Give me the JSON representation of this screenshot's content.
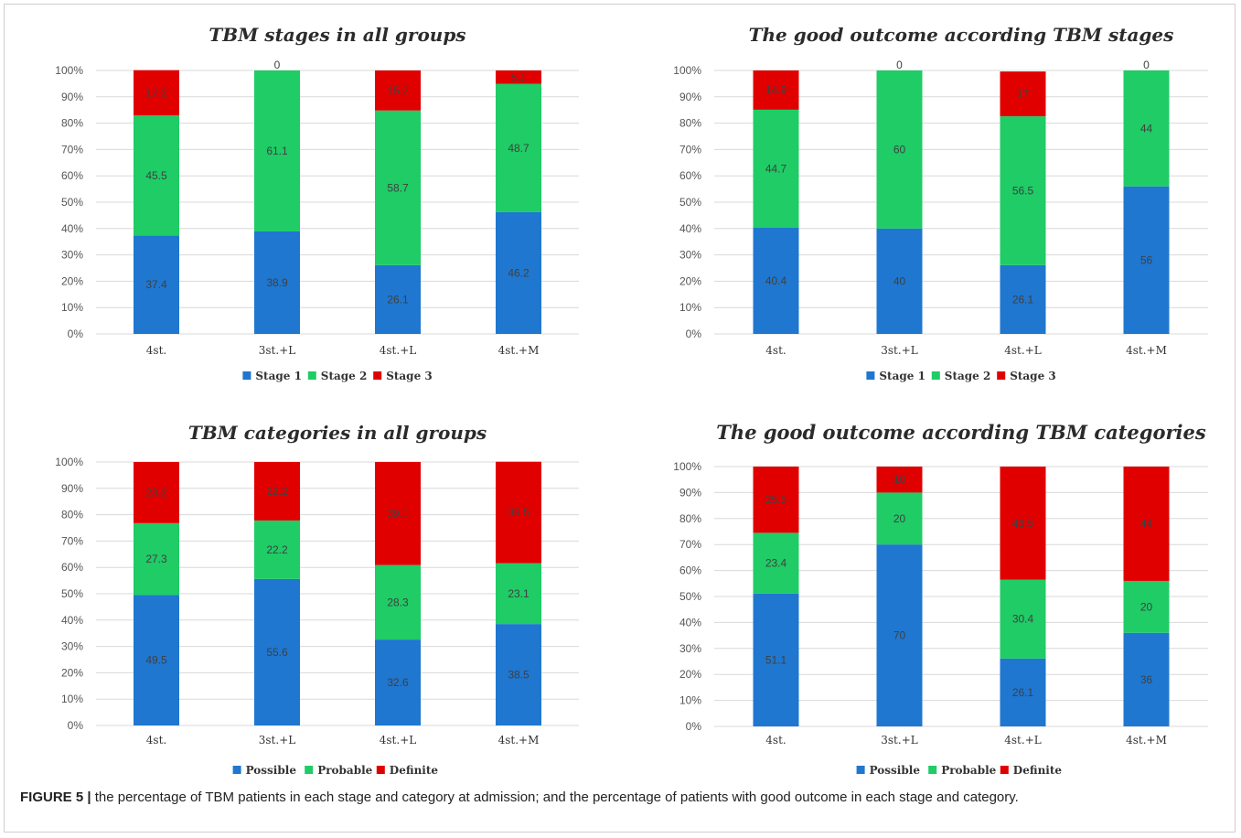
{
  "caption": {
    "label": "FIGURE 5 |",
    "text": " the percentage of TBM patients in each stage and category at admission; and the percentage of patients with good outcome in each stage and category."
  },
  "chart_data": [
    {
      "type": "bar",
      "stacked": true,
      "title": "TBM stages in all groups",
      "categories": [
        "4st.",
        "3st.+L",
        "4st.+L",
        "4st.+M"
      ],
      "yticks": [
        "0%",
        "10%",
        "20%",
        "30%",
        "40%",
        "50%",
        "60%",
        "70%",
        "80%",
        "90%",
        "100%"
      ],
      "ylim": [
        0,
        100
      ],
      "grid": true,
      "legend_position": "bottom",
      "series": [
        {
          "name": "Stage 1",
          "color": "#1f77d0",
          "values": [
            37.4,
            38.9,
            26.1,
            46.2
          ],
          "labels": [
            "37.4",
            "38.9",
            "26.1",
            "46.2"
          ]
        },
        {
          "name": "Stage 2",
          "color": "#1fcc66",
          "values": [
            45.5,
            61.1,
            58.7,
            48.7
          ],
          "labels": [
            "45.5",
            "61.1",
            "58.7",
            "48.7"
          ]
        },
        {
          "name": "Stage 3",
          "color": "#e00000",
          "values": [
            17.2,
            0,
            15.2,
            5.1
          ],
          "labels": [
            "17.2",
            "0",
            "15.2",
            "5.1"
          ]
        }
      ]
    },
    {
      "type": "bar",
      "stacked": true,
      "title": "The good outcome according TBM stages",
      "categories": [
        "4st.",
        "3st.+L",
        "4st.+L",
        "4st.+M"
      ],
      "yticks": [
        "0%",
        "10%",
        "20%",
        "30%",
        "40%",
        "50%",
        "60%",
        "70%",
        "80%",
        "90%",
        "100%"
      ],
      "ylim": [
        0,
        100
      ],
      "grid": true,
      "legend_position": "bottom",
      "series": [
        {
          "name": "Stage 1",
          "color": "#1f77d0",
          "values": [
            40.4,
            40,
            26.1,
            56
          ],
          "labels": [
            "40.4",
            "40",
            "26.1",
            "56"
          ]
        },
        {
          "name": "Stage 2",
          "color": "#1fcc66",
          "values": [
            44.7,
            60,
            56.5,
            44
          ],
          "labels": [
            "44.7",
            "60",
            "56.5",
            "44"
          ]
        },
        {
          "name": "Stage 3",
          "color": "#e00000",
          "values": [
            14.9,
            0,
            17,
            0
          ],
          "labels": [
            "14.9",
            "0",
            "17",
            "0"
          ]
        }
      ]
    },
    {
      "type": "bar",
      "stacked": true,
      "title": "TBM categories in all groups",
      "categories": [
        "4st.",
        "3st.+L",
        "4st.+L",
        "4st.+M"
      ],
      "yticks": [
        "0%",
        "10%",
        "20%",
        "30%",
        "40%",
        "50%",
        "60%",
        "70%",
        "80%",
        "90%",
        "100%"
      ],
      "ylim": [
        0,
        100
      ],
      "grid": true,
      "legend_position": "bottom",
      "series": [
        {
          "name": "Possible",
          "color": "#1f77d0",
          "values": [
            49.5,
            55.6,
            32.6,
            38.5
          ],
          "labels": [
            "49.5",
            "55.6",
            "32.6",
            "38.5"
          ]
        },
        {
          "name": "Probable",
          "color": "#1fcc66",
          "values": [
            27.3,
            22.2,
            28.3,
            23.1
          ],
          "labels": [
            "27.3",
            "22.2",
            "28.3",
            "23.1"
          ]
        },
        {
          "name": "Definite",
          "color": "#e00000",
          "values": [
            23.2,
            22.2,
            39.1,
            38.5
          ],
          "labels": [
            "23.2",
            "22.2",
            "39.1",
            "38.5"
          ]
        }
      ]
    },
    {
      "type": "bar",
      "stacked": true,
      "title": "The good outcome according TBM categories",
      "categories": [
        "4st.",
        "3st.+L",
        "4st.+L",
        "4st.+M"
      ],
      "yticks": [
        "0%",
        "10%",
        "20%",
        "30%",
        "40%",
        "50%",
        "60%",
        "70%",
        "80%",
        "90%",
        "100%"
      ],
      "ylim": [
        0,
        100
      ],
      "grid": true,
      "legend_position": "bottom",
      "series": [
        {
          "name": "Possible",
          "color": "#1f77d0",
          "values": [
            51.1,
            70,
            26.1,
            36
          ],
          "labels": [
            "51.1",
            "70",
            "26.1",
            "36"
          ]
        },
        {
          "name": "Probable",
          "color": "#1fcc66",
          "values": [
            23.4,
            20,
            30.4,
            20
          ],
          "labels": [
            "23.4",
            "20",
            "30.4",
            "20"
          ]
        },
        {
          "name": "Definite",
          "color": "#e00000",
          "values": [
            25.5,
            10,
            43.5,
            44
          ],
          "labels": [
            "25.5",
            "10",
            "43.5",
            "44"
          ]
        }
      ]
    }
  ]
}
